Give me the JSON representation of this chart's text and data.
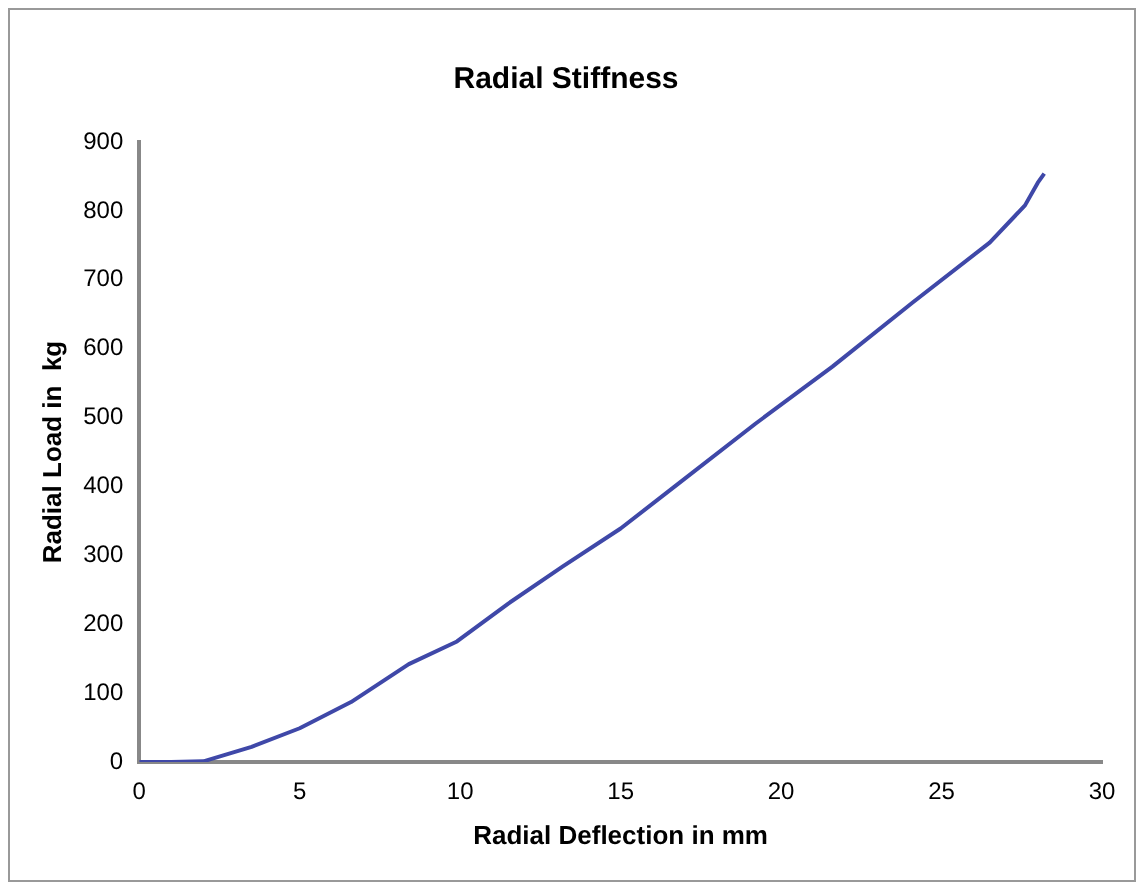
{
  "chart_data": {
    "type": "line",
    "title": "Radial Stiffness",
    "xlabel": "Radial Deflection in mm",
    "ylabel": "Radial Load in  kg",
    "series": [
      {
        "color": "#3f48a8",
        "x": [
          0,
          1,
          2,
          3.5,
          5,
          6.6,
          8.4,
          9.9,
          11.5,
          13.2,
          15,
          16.8,
          19.2,
          21.6,
          24.1,
          26.5,
          27.6,
          28,
          28.2
        ],
        "values": [
          0,
          0,
          1,
          22,
          49,
          87,
          142,
          175,
          230,
          284,
          339,
          404,
          491,
          574,
          667,
          754,
          808,
          841,
          854
        ]
      }
    ],
    "xlim": [
      0,
      30
    ],
    "xticks": [
      0,
      5,
      10,
      15,
      20,
      25,
      30
    ],
    "ylim": [
      0,
      900
    ],
    "yticks": [
      0,
      100,
      200,
      300,
      400,
      500,
      600,
      700,
      800,
      900
    ],
    "grid": false,
    "legend": false,
    "marker": "none",
    "line_style": "solid"
  }
}
